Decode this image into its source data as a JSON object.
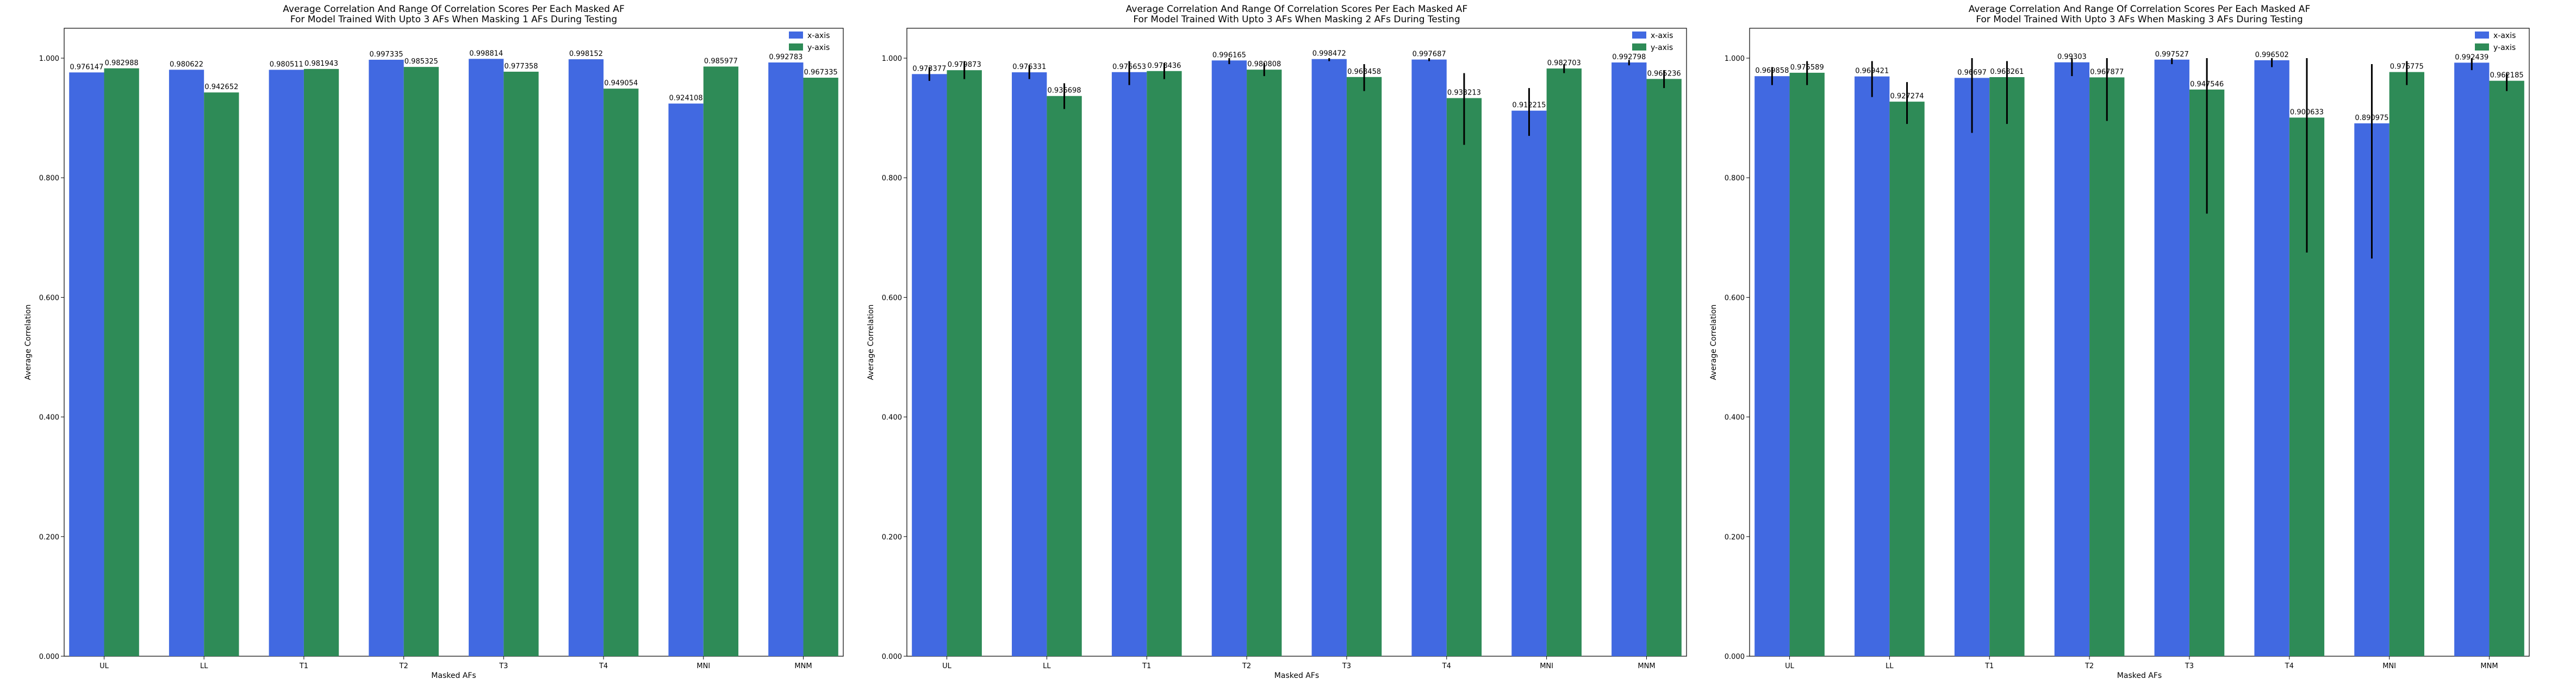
{
  "chart_data": [
    {
      "type": "bar",
      "title": "Average Correlation And Range Of Correlation Scores Per Each Masked AF\nFor Model Trained With Upto 3 AFs When Masking 1 AFs During Testing",
      "xlabel": "Masked AFs",
      "ylabel": "Average Correlation",
      "ylim": [
        0,
        1.05
      ],
      "yticks": [
        "0.000",
        "0.200",
        "0.400",
        "0.600",
        "0.800",
        "1.000"
      ],
      "legend_position": "top-right",
      "categories": [
        "UL",
        "LL",
        "T1",
        "T2",
        "T3",
        "T4",
        "MNI",
        "MNM"
      ],
      "series": [
        {
          "name": "x-axis",
          "color": "#4169e1",
          "values": [
            0.976147,
            0.980622,
            0.980511,
            0.997335,
            0.998814,
            0.998152,
            0.924108,
            0.992783
          ],
          "labels": [
            "0.976147",
            "0.980622",
            "0.980511",
            "0.997335",
            "0.998814",
            "0.998152",
            "0.924108",
            "0.992783"
          ],
          "err_low": [
            0.976,
            0.98,
            0.98,
            0.997,
            0.998,
            0.998,
            0.924,
            0.992
          ],
          "err_high": [
            0.976,
            0.98,
            0.98,
            0.997,
            0.998,
            0.998,
            0.924,
            0.992
          ]
        },
        {
          "name": "y-axis",
          "color": "#2e8b57",
          "values": [
            0.982988,
            0.942652,
            0.981943,
            0.985325,
            0.977358,
            0.949054,
            0.985977,
            0.967335
          ],
          "labels": [
            "0.982988",
            "0.942652",
            "0.981943",
            "0.985325",
            "0.977358",
            "0.949054",
            "0.985977",
            "0.967335"
          ],
          "err_low": [
            0.983,
            0.942,
            0.982,
            0.985,
            0.977,
            0.949,
            0.986,
            0.967
          ],
          "err_high": [
            0.983,
            0.942,
            0.982,
            0.985,
            0.977,
            0.949,
            0.986,
            0.967
          ]
        }
      ]
    },
    {
      "type": "bar",
      "title": "Average Correlation And Range Of Correlation Scores Per Each Masked AF\nFor Model Trained With Upto 3 AFs When Masking 2 AFs During Testing",
      "xlabel": "Masked AFs",
      "ylabel": "Average Correlation",
      "ylim": [
        0,
        1.05
      ],
      "yticks": [
        "0.000",
        "0.200",
        "0.400",
        "0.600",
        "0.800",
        "1.000"
      ],
      "legend_position": "top-right",
      "categories": [
        "UL",
        "LL",
        "T1",
        "T2",
        "T3",
        "T4",
        "MNI",
        "MNM"
      ],
      "series": [
        {
          "name": "x-axis",
          "color": "#4169e1",
          "values": [
            0.973377,
            0.976331,
            0.976653,
            0.996165,
            0.998472,
            0.997687,
            0.912215,
            0.992798
          ],
          "labels": [
            "0.973377",
            "0.976331",
            "0.976653",
            "0.996165",
            "0.998472",
            "0.997687",
            "0.912215",
            "0.992798"
          ],
          "err_low": [
            0.962,
            0.965,
            0.955,
            0.99,
            0.995,
            0.995,
            0.87,
            0.988
          ],
          "err_high": [
            0.985,
            0.988,
            0.995,
            1.0,
            1.0,
            1.0,
            0.95,
            0.997
          ]
        },
        {
          "name": "y-axis",
          "color": "#2e8b57",
          "values": [
            0.979873,
            0.936698,
            0.978436,
            0.980808,
            0.968458,
            0.933213,
            0.982703,
            0.965236
          ],
          "labels": [
            "0.979873",
            "0.936698",
            "0.978436",
            "0.980808",
            "0.968458",
            "0.933213",
            "0.982703",
            "0.965236"
          ],
          "err_low": [
            0.965,
            0.915,
            0.965,
            0.97,
            0.945,
            0.855,
            0.975,
            0.95
          ],
          "err_high": [
            0.995,
            0.958,
            0.992,
            0.992,
            0.99,
            0.975,
            0.99,
            0.98
          ]
        }
      ]
    },
    {
      "type": "bar",
      "title": "Average Correlation And Range Of Correlation Scores Per Each Masked AF\nFor Model Trained With Upto 3 AFs When Masking 3 AFs During Testing",
      "xlabel": "Masked AFs",
      "ylabel": "Average Correlation",
      "ylim": [
        0,
        1.05
      ],
      "yticks": [
        "0.000",
        "0.200",
        "0.400",
        "0.600",
        "0.800",
        "1.000"
      ],
      "legend_position": "top-right",
      "categories": [
        "UL",
        "LL",
        "T1",
        "T2",
        "T3",
        "T4",
        "MNI",
        "MNM"
      ],
      "series": [
        {
          "name": "x-axis",
          "color": "#4169e1",
          "values": [
            0.969858,
            0.969421,
            0.96697,
            0.99303,
            0.997527,
            0.996502,
            0.890975,
            0.992439
          ],
          "labels": [
            "0.969858",
            "0.969421",
            "0.96697",
            "0.99303",
            "0.997527",
            "0.996502",
            "0.890975",
            "0.992439"
          ],
          "err_low": [
            0.955,
            0.935,
            0.875,
            0.97,
            0.99,
            0.985,
            0.665,
            0.98
          ],
          "err_high": [
            0.985,
            0.995,
            1.0,
            1.0,
            1.0,
            1.0,
            0.99,
            1.0
          ]
        },
        {
          "name": "y-axis",
          "color": "#2e8b57",
          "values": [
            0.975589,
            0.927274,
            0.968261,
            0.967877,
            0.947546,
            0.900633,
            0.976775,
            0.962185
          ],
          "labels": [
            "0.975589",
            "0.927274",
            "0.968261",
            "0.967877",
            "0.947546",
            "0.900633",
            "0.976775",
            "0.962185"
          ],
          "err_low": [
            0.955,
            0.89,
            0.89,
            0.895,
            0.74,
            0.675,
            0.955,
            0.945
          ],
          "err_high": [
            0.995,
            0.96,
            0.995,
            1.0,
            1.0,
            1.0,
            0.995,
            0.975
          ]
        }
      ]
    }
  ]
}
